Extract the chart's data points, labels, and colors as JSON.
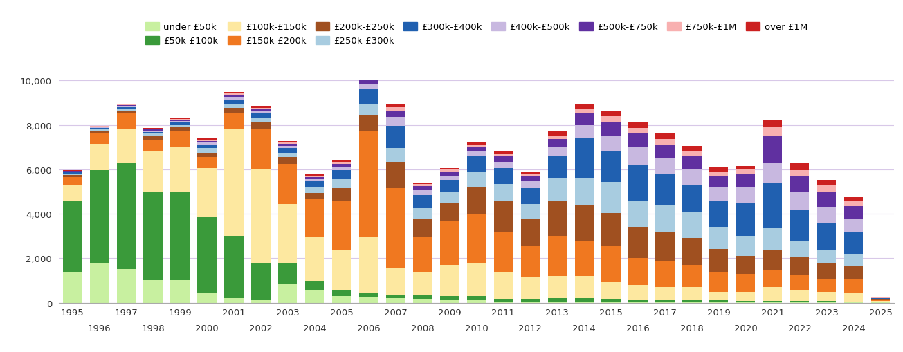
{
  "years": [
    1995,
    1996,
    1997,
    1998,
    1999,
    2000,
    2001,
    2002,
    2003,
    2004,
    2005,
    2006,
    2007,
    2008,
    2009,
    2010,
    2011,
    2012,
    2013,
    2014,
    2015,
    2016,
    2017,
    2018,
    2019,
    2020,
    2021,
    2022,
    2023,
    2024,
    2025
  ],
  "categories": [
    "under £50k",
    "£50k-£100k",
    "£100k-£150k",
    "£150k-£200k",
    "£200k-£250k",
    "£250k-£300k",
    "£300k-£400k",
    "£400k-£500k",
    "£500k-£750k",
    "£750k-£1M",
    "over £1M"
  ],
  "colors": [
    "#c8f0a0",
    "#3a9a3a",
    "#fde8a0",
    "#f07820",
    "#a05020",
    "#a8cce0",
    "#2060b0",
    "#c8b8e0",
    "#6030a0",
    "#f8b0b0",
    "#cc2020"
  ],
  "data": {
    "under £50k": [
      1350,
      1750,
      1500,
      1000,
      1000,
      450,
      200,
      100,
      850,
      550,
      300,
      250,
      200,
      150,
      100,
      100,
      50,
      50,
      50,
      50,
      30,
      20,
      20,
      20,
      20,
      15,
      10,
      10,
      10,
      10,
      10
    ],
    "£50k-£100k": [
      3200,
      4200,
      4800,
      4000,
      4000,
      3400,
      2800,
      1700,
      900,
      400,
      250,
      200,
      150,
      200,
      200,
      200,
      100,
      100,
      150,
      150,
      100,
      80,
      80,
      80,
      80,
      80,
      80,
      60,
      60,
      50,
      20
    ],
    "£100k-£150k": [
      750,
      1200,
      1500,
      1800,
      2000,
      2200,
      4800,
      4200,
      2700,
      2000,
      1800,
      2500,
      1200,
      1000,
      1400,
      1500,
      1200,
      1000,
      1000,
      1000,
      800,
      700,
      600,
      600,
      400,
      400,
      600,
      500,
      400,
      400,
      50
    ],
    "£150k-£200k": [
      350,
      500,
      700,
      500,
      700,
      500,
      700,
      1800,
      1800,
      1700,
      2200,
      4800,
      3600,
      1600,
      2000,
      2200,
      1800,
      1400,
      1800,
      1600,
      1600,
      1200,
      1200,
      1000,
      900,
      800,
      800,
      700,
      600,
      600,
      30
    ],
    "£200k-£250k": [
      100,
      100,
      150,
      200,
      200,
      200,
      250,
      300,
      300,
      300,
      600,
      700,
      1200,
      800,
      800,
      1200,
      1400,
      1200,
      1600,
      1600,
      1500,
      1400,
      1300,
      1200,
      1000,
      800,
      900,
      800,
      700,
      600,
      30
    ],
    "£250k-£300k": [
      60,
      60,
      80,
      100,
      100,
      200,
      200,
      200,
      200,
      250,
      400,
      500,
      600,
      500,
      500,
      700,
      800,
      700,
      1000,
      1200,
      1400,
      1200,
      1200,
      1200,
      1000,
      900,
      1000,
      700,
      600,
      500,
      20
    ],
    "£300k-£400k": [
      50,
      50,
      70,
      80,
      100,
      150,
      200,
      200,
      200,
      250,
      400,
      700,
      1000,
      600,
      500,
      700,
      700,
      700,
      1000,
      1800,
      1400,
      1600,
      1400,
      1200,
      1200,
      1500,
      2000,
      1400,
      1200,
      1000,
      30
    ],
    "£400k-£500k": [
      30,
      30,
      50,
      60,
      60,
      100,
      100,
      100,
      100,
      100,
      150,
      200,
      400,
      200,
      200,
      200,
      300,
      300,
      400,
      600,
      700,
      800,
      700,
      700,
      600,
      700,
      900,
      800,
      700,
      600,
      15
    ],
    "£500k-£750k": [
      30,
      30,
      50,
      60,
      60,
      80,
      100,
      100,
      100,
      100,
      150,
      200,
      300,
      200,
      200,
      200,
      250,
      250,
      350,
      500,
      600,
      600,
      600,
      600,
      500,
      600,
      1200,
      700,
      700,
      600,
      15
    ],
    "£750k-£1M": [
      20,
      20,
      30,
      40,
      40,
      50,
      60,
      60,
      60,
      60,
      80,
      100,
      150,
      80,
      80,
      100,
      100,
      100,
      150,
      200,
      250,
      250,
      250,
      250,
      200,
      200,
      400,
      300,
      300,
      200,
      10
    ],
    "over £1M": [
      20,
      20,
      30,
      30,
      40,
      50,
      60,
      60,
      60,
      60,
      80,
      100,
      150,
      80,
      80,
      100,
      100,
      100,
      200,
      250,
      250,
      250,
      250,
      200,
      200,
      150,
      350,
      300,
      250,
      200,
      10
    ]
  },
  "ylim": [
    0,
    10000
  ],
  "yticks": [
    0,
    2000,
    4000,
    6000,
    8000,
    10000
  ],
  "background_color": "#ffffff",
  "grid_color": "#d8c8e8",
  "bar_width": 0.7,
  "xlim": [
    1994.5,
    2025.5
  ]
}
